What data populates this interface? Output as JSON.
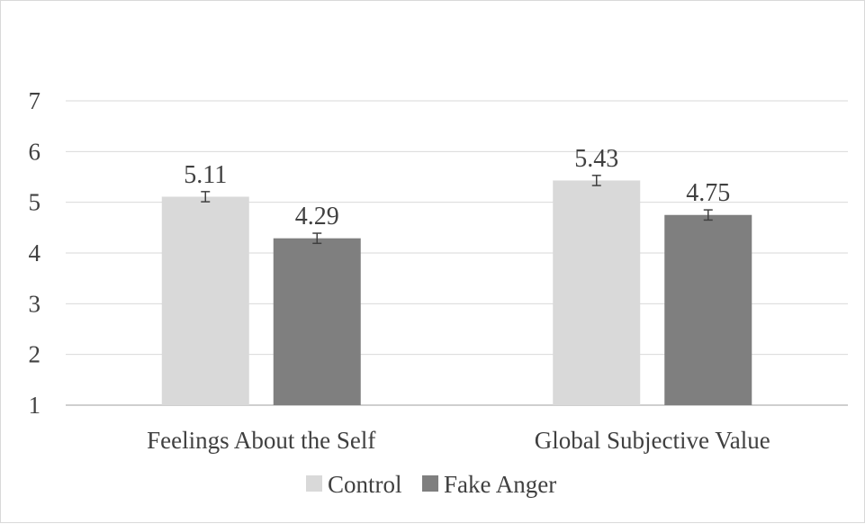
{
  "chart_data": {
    "type": "bar",
    "categories": [
      "Feelings About the Self",
      "Global Subjective Value"
    ],
    "series": [
      {
        "name": "Control",
        "values": [
          5.11,
          5.43
        ],
        "error": [
          0.1,
          0.1
        ],
        "color": "#d9d9d9"
      },
      {
        "name": "Fake Anger",
        "values": [
          4.29,
          4.75
        ],
        "error": [
          0.1,
          0.1
        ],
        "color": "#7f7f7f"
      }
    ],
    "data_labels": [
      [
        "5.11",
        "5.43"
      ],
      [
        "4.29",
        "4.75"
      ]
    ],
    "ylim": [
      1,
      7
    ],
    "yticks": [
      1,
      2,
      3,
      4,
      5,
      6,
      7
    ],
    "grid": true,
    "legend_position": "bottom",
    "gridline_color": "#d9d9d9",
    "axis_color": "#bfbfbf",
    "errorbar_color": "#404040"
  }
}
